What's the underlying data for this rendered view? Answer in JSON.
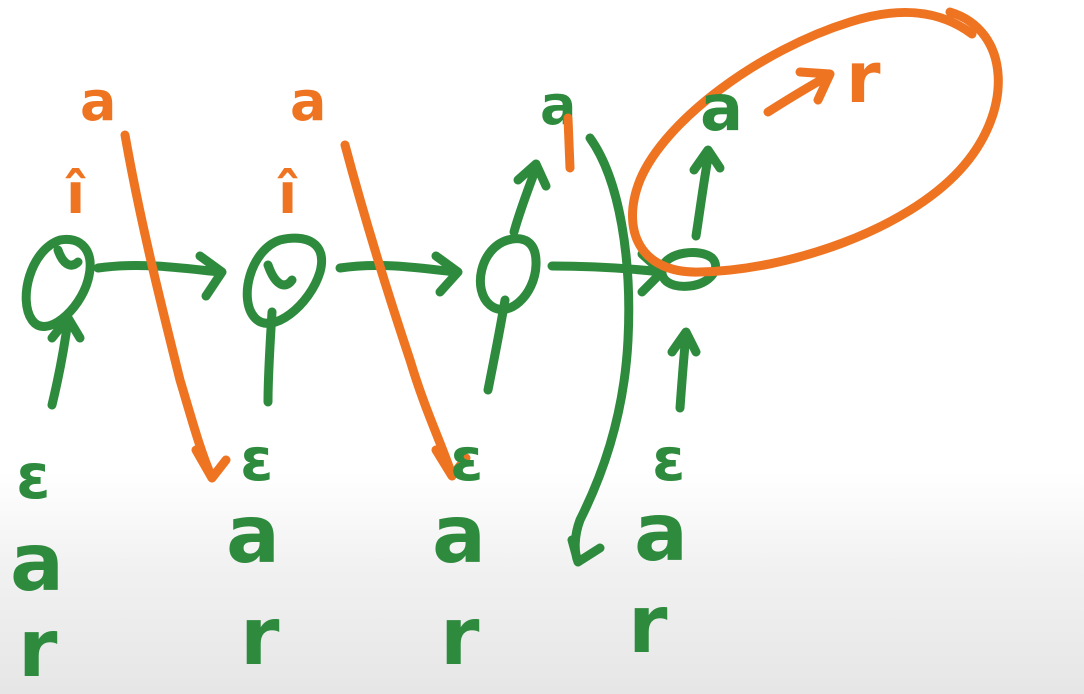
{
  "colors": {
    "ink_green": "#2e8b3e",
    "ink_orange": "#ef7422"
  },
  "columns": [
    {
      "output_char": "a",
      "output_mark": "î",
      "input_stack": [
        "ε",
        "a",
        "r"
      ]
    },
    {
      "output_char": "a",
      "output_mark": "î",
      "input_stack": [
        "ε",
        "a",
        "r"
      ]
    },
    {
      "output_char": "a",
      "output_mark": "",
      "input_stack": [
        "ε",
        "a",
        "r"
      ]
    },
    {
      "output_char": "a",
      "output_mark": "",
      "input_stack": [
        "ε",
        "a",
        "r"
      ]
    }
  ],
  "circled_group": {
    "from": "a",
    "to": "r"
  }
}
